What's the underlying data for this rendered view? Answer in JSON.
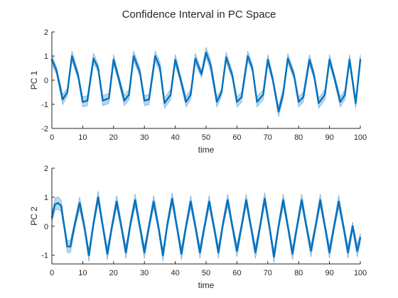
{
  "figure_title": "Confidence Interval in PC Space",
  "colors": {
    "line": "#0072BD",
    "band": "#0072BD",
    "axis": "#262626"
  },
  "chart_data": [
    {
      "type": "line",
      "title": "Confidence Interval in PC Space",
      "xlabel": "time",
      "ylabel": "PC 1",
      "xlim": [
        0,
        100
      ],
      "ylim": [
        -2,
        2
      ],
      "xticks": [
        0,
        10,
        20,
        30,
        40,
        50,
        60,
        70,
        80,
        90,
        100
      ],
      "yticks": [
        -2,
        -1,
        0,
        1,
        2
      ],
      "grid": false,
      "series": [
        {
          "x": [
            0,
            1.5,
            3.5,
            5,
            6.5,
            8.5,
            10,
            11.5,
            13.5,
            15,
            16.5,
            18.5,
            20,
            21.5,
            23.5,
            25,
            26.5,
            28.5,
            30,
            31.5,
            33.5,
            35,
            36.5,
            38.5,
            40,
            41.5,
            43.5,
            45,
            46.5,
            48.5,
            50,
            51.5,
            53.5,
            55,
            56.5,
            58.5,
            60,
            61.5,
            63.5,
            65,
            66.5,
            68.5,
            70,
            71.5,
            73.5,
            75,
            76.5,
            78.5,
            80,
            81.5,
            83.5,
            85,
            86.5,
            88.5,
            90,
            91.5,
            93.5,
            95,
            96.5,
            98.5,
            100
          ],
          "y": [
            0.85,
            0.4,
            -0.8,
            -0.5,
            1.0,
            0.2,
            -0.9,
            -0.85,
            0.9,
            0.5,
            -0.85,
            -0.75,
            0.85,
            0.15,
            -0.85,
            -0.6,
            1.0,
            0.35,
            -0.85,
            -0.8,
            1.0,
            0.55,
            -0.95,
            -0.6,
            0.85,
            0.15,
            -0.9,
            -0.6,
            0.9,
            0.25,
            1.15,
            0.6,
            -0.9,
            -0.5,
            0.95,
            0.2,
            -0.9,
            -0.7,
            1.0,
            0.5,
            -0.9,
            -0.6,
            0.85,
            0.1,
            -1.3,
            -0.55,
            0.9,
            0.2,
            -0.9,
            -0.7,
            0.85,
            0.2,
            -0.95,
            -0.6,
            0.85,
            0.15,
            -0.9,
            -0.6,
            0.85,
            -0.95,
            0.85
          ],
          "ci_halfwidth": 0.15
        }
      ]
    },
    {
      "type": "line",
      "title": "",
      "xlabel": "time",
      "ylabel": "PC 2",
      "xlim": [
        0,
        100
      ],
      "ylim": [
        -1.3,
        2
      ],
      "xticks": [
        0,
        10,
        20,
        30,
        40,
        50,
        60,
        70,
        80,
        90,
        100
      ],
      "yticks": [
        -1,
        0,
        1,
        2
      ],
      "grid": false,
      "series": [
        {
          "x": [
            0,
            1,
            2,
            3,
            4,
            5,
            6,
            7.5,
            9,
            10.5,
            12,
            13.5,
            15,
            16.5,
            18,
            19.5,
            21,
            22.5,
            24,
            25.5,
            27,
            28.5,
            30,
            31.5,
            33,
            34.5,
            36,
            37.5,
            39,
            40.5,
            42,
            43.5,
            45,
            46.5,
            48,
            49.5,
            51,
            52.5,
            54,
            55.5,
            57,
            58.5,
            60,
            61.5,
            63,
            64.5,
            66,
            67.5,
            69,
            70.5,
            72,
            73.5,
            75,
            76.5,
            78,
            79.5,
            81,
            82.5,
            84,
            85.5,
            87,
            88.5,
            90,
            91.5,
            93,
            94.5,
            96,
            97.5,
            99,
            100
          ],
          "y": [
            0.3,
            0.75,
            0.8,
            0.7,
            0.0,
            -0.7,
            -0.7,
            0.1,
            0.8,
            0.0,
            -1.0,
            0.1,
            1.0,
            0.0,
            -0.95,
            0.0,
            0.85,
            0.0,
            -0.9,
            0.1,
            0.9,
            0.0,
            -0.9,
            0.0,
            0.85,
            0.0,
            -1.0,
            0.1,
            0.95,
            0.0,
            -0.95,
            0.0,
            0.85,
            0.0,
            -0.9,
            0.0,
            0.85,
            0.0,
            -0.9,
            0.1,
            0.9,
            0.0,
            -0.85,
            0.0,
            0.9,
            0.0,
            -0.9,
            0.0,
            0.95,
            0.0,
            -1.05,
            0.0,
            0.9,
            0.0,
            -0.95,
            0.0,
            0.9,
            0.0,
            -0.85,
            0.0,
            0.9,
            0.0,
            -0.9,
            0.0,
            0.85,
            0.0,
            -0.9,
            0.0,
            -0.85,
            -0.4
          ],
          "ci_halfwidth": 0.15
        }
      ]
    }
  ]
}
